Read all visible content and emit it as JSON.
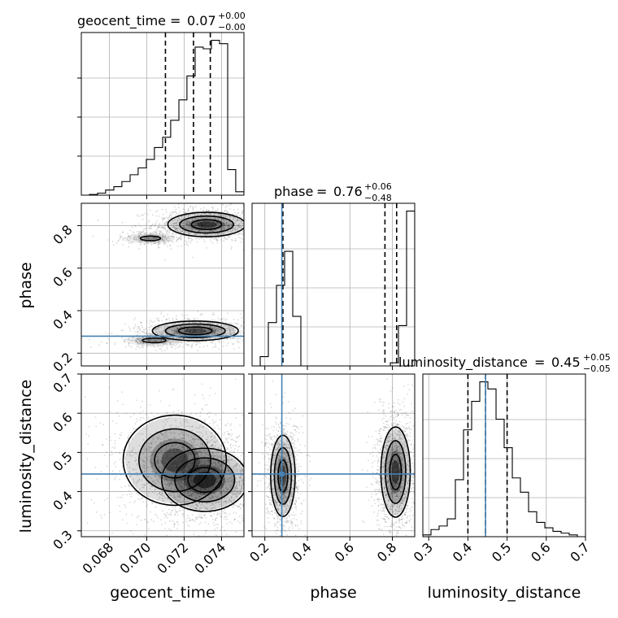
{
  "chart_data": {
    "type": "corner",
    "parameters": [
      "geocent_time",
      "phase",
      "luminosity_distance"
    ],
    "titles": [
      {
        "name": "geocent_time",
        "median": "0.07",
        "plus": "+0.00",
        "minus": "−0.00"
      },
      {
        "name": "phase",
        "median": "0.76",
        "plus": "+0.06",
        "minus": "−0.48"
      },
      {
        "name": "luminosity_distance",
        "median": "0.45",
        "plus": "+0.05",
        "minus": "−0.05"
      }
    ],
    "ranges": {
      "geocent_time": [
        0.0665,
        0.0752
      ],
      "phase": [
        0.14,
        0.905
      ],
      "luminosity_distance": [
        0.285,
        0.7
      ]
    },
    "ticks": {
      "geocent_time": [
        "0.068",
        "0.070",
        "0.072",
        "0.074"
      ],
      "phase_x": [
        "0.2",
        "0.4",
        "0.6",
        "0.8"
      ],
      "phase_y": [
        "0.2",
        "0.4",
        "0.6",
        "0.8"
      ],
      "luminosity_distance_x": [
        "0.3",
        "0.4",
        "0.5",
        "0.6",
        "0.7"
      ],
      "luminosity_distance_y": [
        "0.3",
        "0.4",
        "0.5",
        "0.6",
        "0.7"
      ]
    },
    "truths": {
      "geocent_time": null,
      "phase": 0.28,
      "luminosity_distance": 0.445
    },
    "quantiles": {
      "geocent_time": [
        0.071,
        0.0725,
        0.0734
      ],
      "phase": [
        0.285,
        0.765,
        0.82
      ],
      "luminosity_distance": [
        0.4,
        0.445,
        0.5
      ]
    },
    "histograms": {
      "geocent_time": {
        "edges": [
          0.0665,
          0.06693,
          0.06737,
          0.0678,
          0.06824,
          0.06867,
          0.06911,
          0.06954,
          0.06998,
          0.07041,
          0.07085,
          0.07128,
          0.07172,
          0.07215,
          0.07259,
          0.07302,
          0.07346,
          0.07389,
          0.07433,
          0.07476,
          0.0752
        ],
        "counts": [
          0,
          0.004,
          0.012,
          0.03,
          0.05,
          0.08,
          0.12,
          0.16,
          0.21,
          0.28,
          0.34,
          0.44,
          0.56,
          0.7,
          0.87,
          0.86,
          0.91,
          0.89,
          0.15,
          0.02
        ]
      },
      "phase": {
        "edges": [
          0.14,
          0.1783,
          0.2165,
          0.2548,
          0.293,
          0.3313,
          0.3695,
          0.4078,
          0.446,
          0.4843,
          0.5225,
          0.5608,
          0.599,
          0.6373,
          0.6755,
          0.7138,
          0.752,
          0.7903,
          0.8285,
          0.8668,
          0.905
        ],
        "counts": [
          0.0,
          0.03,
          0.14,
          0.26,
          0.37,
          0.16,
          0.0,
          0.0,
          0.0,
          0.0,
          0.0,
          0.0,
          0.0,
          0.0,
          0.0,
          0.0,
          0.0,
          0.01,
          0.13,
          0.5
        ]
      },
      "luminosity_distance": {
        "edges": [
          0.285,
          0.3058,
          0.3265,
          0.3473,
          0.368,
          0.3888,
          0.4095,
          0.4303,
          0.451,
          0.4718,
          0.4925,
          0.5133,
          0.534,
          0.5548,
          0.5755,
          0.5963,
          0.617,
          0.6378,
          0.6585,
          0.6793,
          0.7
        ],
        "counts": [
          0.01,
          0.04,
          0.06,
          0.1,
          0.32,
          0.6,
          0.76,
          0.87,
          0.83,
          0.66,
          0.5,
          0.33,
          0.25,
          0.14,
          0.08,
          0.05,
          0.03,
          0.02,
          0.01,
          0.0
        ]
      }
    },
    "density_modes": {
      "time_phase": [
        {
          "x": 0.0732,
          "y": 0.805,
          "sx": 0.0009,
          "sy": 0.025,
          "w": 0.55
        },
        {
          "x": 0.0726,
          "y": 0.305,
          "sx": 0.001,
          "sy": 0.02,
          "w": 0.45
        },
        {
          "x": 0.0702,
          "y": 0.74,
          "sx": 0.0006,
          "sy": 0.012,
          "w": 0.1
        },
        {
          "x": 0.0704,
          "y": 0.26,
          "sx": 0.0007,
          "sy": 0.012,
          "w": 0.1
        }
      ],
      "time_distance": [
        {
          "x": 0.0731,
          "y": 0.43,
          "sx": 0.001,
          "sy": 0.035,
          "w": 0.8
        },
        {
          "x": 0.0715,
          "y": 0.48,
          "sx": 0.0012,
          "sy": 0.05,
          "w": 0.4
        }
      ],
      "phase_distance": [
        {
          "x": 0.285,
          "y": 0.44,
          "sx": 0.025,
          "sy": 0.045,
          "w": 0.45
        },
        {
          "x": 0.815,
          "y": 0.45,
          "sx": 0.03,
          "sy": 0.05,
          "w": 0.55
        }
      ]
    }
  }
}
